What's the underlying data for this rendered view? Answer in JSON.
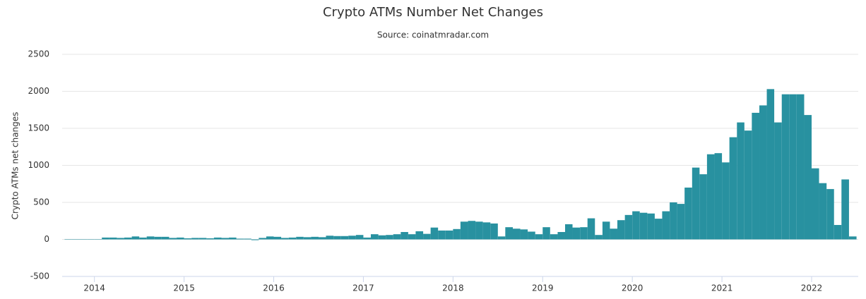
{
  "chart_data": {
    "type": "bar",
    "title": "Crypto ATMs Number Net Changes",
    "subtitle": "Source: coinatmradar.com",
    "y_label": "Crypto ATMs net changes",
    "color": "#2891a0",
    "grid": true,
    "xlim": [
      2013.64,
      2022.52
    ],
    "xticks": [
      2014,
      2015,
      2016,
      2017,
      2018,
      2019,
      2020,
      2021,
      2022
    ],
    "ylim": [
      -500,
      2500
    ],
    "yticks": [
      -500,
      0,
      500,
      1000,
      1500,
      2000,
      2500
    ],
    "x": [
      2013.667,
      2013.75,
      2013.833,
      2013.917,
      2014,
      2014.083,
      2014.167,
      2014.25,
      2014.333,
      2014.417,
      2014.5,
      2014.583,
      2014.667,
      2014.75,
      2014.833,
      2014.917,
      2015,
      2015.083,
      2015.167,
      2015.25,
      2015.333,
      2015.417,
      2015.5,
      2015.583,
      2015.667,
      2015.75,
      2015.833,
      2015.917,
      2016,
      2016.083,
      2016.167,
      2016.25,
      2016.333,
      2016.417,
      2016.5,
      2016.583,
      2016.667,
      2016.75,
      2016.833,
      2016.917,
      2017,
      2017.083,
      2017.167,
      2017.25,
      2017.333,
      2017.417,
      2017.5,
      2017.583,
      2017.667,
      2017.75,
      2017.833,
      2017.917,
      2018,
      2018.083,
      2018.167,
      2018.25,
      2018.333,
      2018.417,
      2018.5,
      2018.583,
      2018.667,
      2018.75,
      2018.833,
      2018.917,
      2019,
      2019.083,
      2019.167,
      2019.25,
      2019.333,
      2019.417,
      2019.5,
      2019.583,
      2019.667,
      2019.75,
      2019.833,
      2019.917,
      2020,
      2020.083,
      2020.167,
      2020.25,
      2020.333,
      2020.417,
      2020.5,
      2020.583,
      2020.667,
      2020.75,
      2020.833,
      2020.917,
      2021,
      2021.083,
      2021.167,
      2021.25,
      2021.333,
      2021.417,
      2021.5,
      2021.583,
      2021.667,
      2021.75,
      2021.833,
      2021.917,
      2022,
      2022.083,
      2022.167,
      2022.25,
      2022.333,
      2022.417
    ],
    "values": [
      5,
      5,
      5,
      5,
      5,
      25,
      25,
      20,
      25,
      40,
      25,
      40,
      35,
      35,
      20,
      25,
      15,
      20,
      20,
      15,
      25,
      20,
      25,
      10,
      10,
      -10,
      20,
      40,
      35,
      20,
      25,
      35,
      30,
      35,
      30,
      50,
      45,
      45,
      50,
      60,
      25,
      70,
      55,
      60,
      70,
      100,
      70,
      110,
      75,
      160,
      120,
      120,
      140,
      240,
      250,
      240,
      230,
      215,
      40,
      165,
      145,
      135,
      105,
      70,
      165,
      70,
      100,
      205,
      160,
      165,
      285,
      60,
      240,
      145,
      260,
      330,
      380,
      360,
      350,
      280,
      380,
      500,
      480,
      700,
      970,
      880,
      1150,
      1165,
      1040,
      1380,
      1580,
      1470,
      1710,
      1810,
      2030,
      1580,
      1960,
      1960,
      1960,
      1680,
      960,
      760,
      680,
      195,
      810,
      40
    ]
  }
}
